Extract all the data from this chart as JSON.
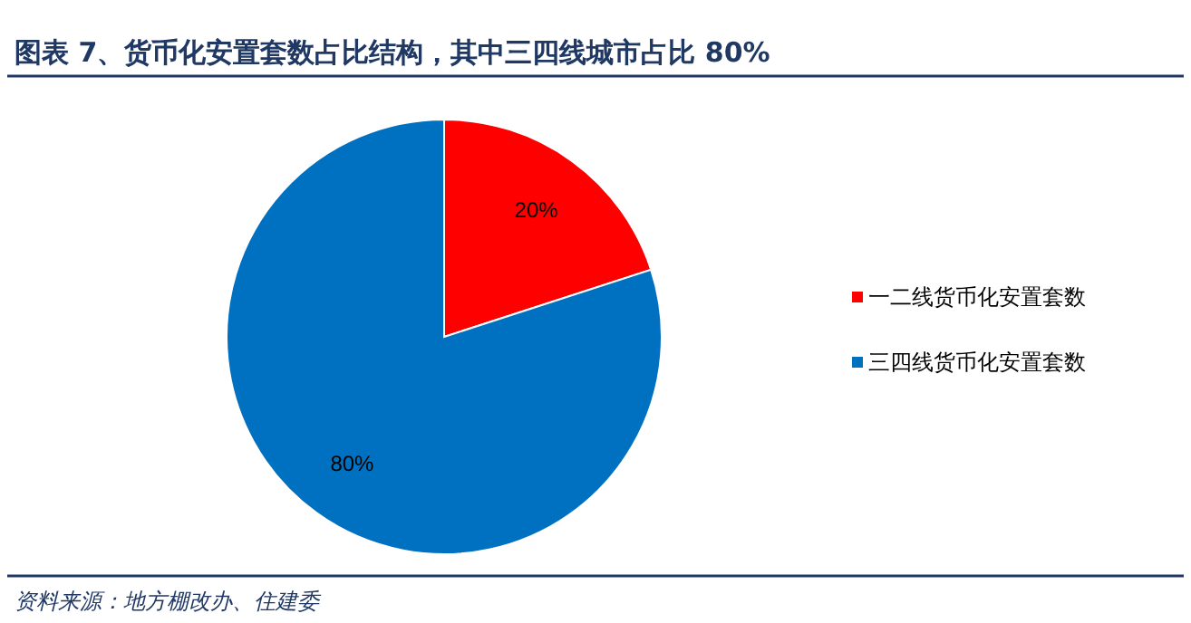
{
  "chart_data": {
    "type": "pie",
    "title": "图表 7、货币化安置套数占比结构，其中三四线城市占比 80%",
    "categories": [
      "一二线货币化安置套数",
      "三四线货币化安置套数"
    ],
    "values": [
      20,
      80
    ],
    "colors": [
      "#ff0000",
      "#0070c0"
    ],
    "value_labels": [
      "20%",
      "80%"
    ],
    "legend": "right",
    "annotations": [
      "资料来源：地方棚改办、住建委"
    ]
  }
}
